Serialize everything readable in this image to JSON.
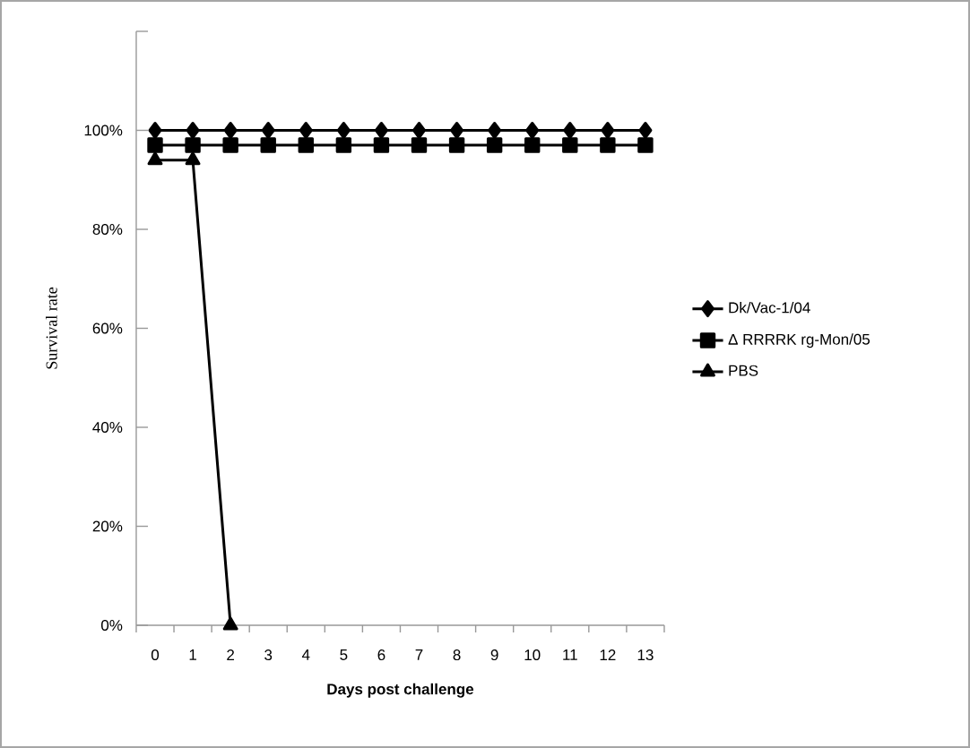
{
  "chart_data": {
    "type": "line",
    "xlabel": "Days post challenge",
    "ylabel": "Survival rate",
    "categories": [
      "0",
      "1",
      "2",
      "3",
      "4",
      "5",
      "6",
      "7",
      "8",
      "9",
      "10",
      "11",
      "12",
      "13"
    ],
    "series": [
      {
        "name": "Dk/Vac-1/04",
        "color": "#000000",
        "marker": "diamond",
        "values": [
          100,
          100,
          100,
          100,
          100,
          100,
          100,
          100,
          100,
          100,
          100,
          100,
          100,
          100
        ]
      },
      {
        "name": "Δ RRRRK rg-Mon/05",
        "color": "#000000",
        "marker": "square",
        "values": [
          97,
          97,
          97,
          97,
          97,
          97,
          97,
          97,
          97,
          97,
          97,
          97,
          97,
          97
        ]
      },
      {
        "name": "PBS",
        "color": "#000000",
        "marker": "triangle",
        "values": [
          94,
          94,
          0,
          null,
          null,
          null,
          null,
          null,
          null,
          null,
          null,
          null,
          null,
          null
        ]
      }
    ],
    "ylim": [
      0,
      120
    ],
    "yticks": [
      {
        "value": 0,
        "label": "0%"
      },
      {
        "value": 20,
        "label": "20%"
      },
      {
        "value": 40,
        "label": "40%"
      },
      {
        "value": 60,
        "label": "60%"
      },
      {
        "value": 80,
        "label": "80%"
      },
      {
        "value": 100,
        "label": "100%"
      },
      {
        "value": 120,
        "label": null
      }
    ],
    "legend": "right"
  }
}
